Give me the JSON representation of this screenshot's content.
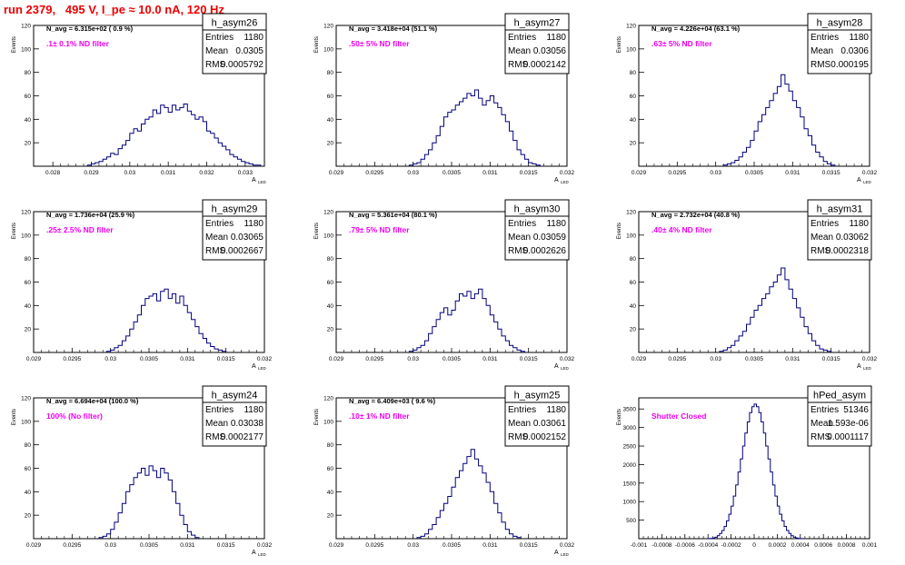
{
  "page": {
    "title": "run 2379,   495 V, I_pe ≈ 10.0 nA, 120 Hz"
  },
  "colors": {
    "hist": "#000080",
    "note": "#ee00ee",
    "title": "#ee0000",
    "frame": "#000000"
  },
  "chart_data": [
    {
      "type": "histogram",
      "name": "h_asym26",
      "navg": "N_avg = 6.315e+02 ( 0.9 %)",
      "note": ".1± 0.1% ND filter",
      "stats": {
        "entries": "1180",
        "mean": "0.0305",
        "rms": "0.0005792"
      },
      "xlim": [
        0.0275,
        0.0335
      ],
      "ylim": [
        0,
        120
      ],
      "xticks": [
        "0.028",
        "0.029",
        "0.03",
        "0.031",
        "0.032",
        "0.033"
      ],
      "yticks": [
        "20",
        "40",
        "60",
        "80",
        "100",
        "120"
      ],
      "xlabel": "A",
      "xsub": "LED",
      "ylabel": "Events",
      "bins": {
        "start": 0.0289,
        "width": 0.0001,
        "counts": [
          1,
          2,
          3,
          4,
          6,
          8,
          11,
          10,
          15,
          18,
          22,
          28,
          32,
          30,
          36,
          40,
          42,
          48,
          45,
          52,
          50,
          46,
          52,
          48,
          50,
          53,
          47,
          44,
          40,
          42,
          38,
          30,
          28,
          24,
          20,
          17,
          14,
          10,
          8,
          6,
          4,
          3,
          2,
          1,
          1
        ]
      }
    },
    {
      "type": "histogram",
      "name": "h_asym27",
      "navg": "N_avg = 3.418e+04 (51.1 %)",
      "note": ".50± 5% ND filter",
      "stats": {
        "entries": "1180",
        "mean": "0.03056",
        "rms": "0.0002142"
      },
      "xlim": [
        0.029,
        0.032
      ],
      "ylim": [
        0,
        120
      ],
      "xticks": [
        "0.029",
        "0.0295",
        "0.03",
        "0.0305",
        "0.031",
        "0.0315",
        "0.032"
      ],
      "yticks": [
        "20",
        "40",
        "60",
        "80",
        "100",
        "120"
      ],
      "xlabel": "A",
      "xsub": "LED",
      "ylabel": "Events",
      "bins": {
        "start": 0.02995,
        "width": 5e-05,
        "counts": [
          1,
          2,
          3,
          6,
          10,
          14,
          20,
          26,
          34,
          42,
          46,
          48,
          52,
          55,
          58,
          62,
          60,
          65,
          58,
          52,
          56,
          60,
          54,
          50,
          44,
          38,
          30,
          22,
          14,
          10,
          6,
          3,
          2,
          1
        ]
      }
    },
    {
      "type": "histogram",
      "name": "h_asym28",
      "navg": "N_avg = 4.226e+04 (63.1 %)",
      "note": ".63± 5% ND filter",
      "stats": {
        "entries": "1180",
        "mean": "0.0306",
        "rms": "0.000195"
      },
      "xlim": [
        0.029,
        0.032
      ],
      "ylim": [
        0,
        120
      ],
      "xticks": [
        "0.029",
        "0.0295",
        "0.03",
        "0.0305",
        "0.031",
        "0.0315",
        "0.032"
      ],
      "yticks": [
        "20",
        "40",
        "60",
        "80",
        "100",
        "120"
      ],
      "xlabel": "A",
      "xsub": "LED",
      "ylabel": "Events",
      "bins": {
        "start": 0.0301,
        "width": 5e-05,
        "counts": [
          1,
          2,
          3,
          5,
          8,
          12,
          16,
          22,
          30,
          38,
          44,
          50,
          56,
          62,
          68,
          78,
          70,
          64,
          56,
          50,
          42,
          32,
          26,
          18,
          12,
          8,
          4,
          2,
          1
        ]
      }
    },
    {
      "type": "histogram",
      "name": "h_asym29",
      "navg": "N_avg = 1.736e+04 (25.9 %)",
      "note": ".25± 2.5% ND filter",
      "stats": {
        "entries": "1180",
        "mean": "0.03065",
        "rms": "0.0002667"
      },
      "xlim": [
        0.029,
        0.032
      ],
      "ylim": [
        0,
        120
      ],
      "xticks": [
        "0.029",
        "0.0295",
        "0.03",
        "0.0305",
        "0.031",
        "0.0315",
        "0.032"
      ],
      "yticks": [
        "20",
        "40",
        "60",
        "80",
        "100",
        "120"
      ],
      "xlabel": "A",
      "xsub": "LED",
      "ylabel": "Events",
      "bins": {
        "start": 0.02995,
        "width": 5e-05,
        "counts": [
          1,
          2,
          4,
          6,
          10,
          14,
          20,
          26,
          32,
          40,
          46,
          48,
          50,
          44,
          52,
          54,
          46,
          50,
          42,
          48,
          40,
          34,
          28,
          22,
          16,
          12,
          8,
          5,
          3,
          2,
          1
        ]
      }
    },
    {
      "type": "histogram",
      "name": "h_asym30",
      "navg": "N_avg = 5.361e+04 (80.1 %)",
      "note": ".79± 5% ND filter",
      "stats": {
        "entries": "1180",
        "mean": "0.03059",
        "rms": "0.0002626"
      },
      "xlim": [
        0.029,
        0.032
      ],
      "ylim": [
        0,
        120
      ],
      "xticks": [
        "0.029",
        "0.0295",
        "0.03",
        "0.0305",
        "0.031",
        "0.0315",
        "0.032"
      ],
      "yticks": [
        "20",
        "40",
        "60",
        "80",
        "100",
        "120"
      ],
      "xlabel": "A",
      "xsub": "LED",
      "ylabel": "Events",
      "bins": {
        "start": 0.02995,
        "width": 5e-05,
        "counts": [
          1,
          2,
          4,
          6,
          10,
          16,
          22,
          28,
          34,
          38,
          32,
          36,
          44,
          50,
          48,
          52,
          46,
          50,
          54,
          46,
          40,
          32,
          26,
          20,
          14,
          10,
          6,
          4,
          2,
          1
        ]
      }
    },
    {
      "type": "histogram",
      "name": "h_asym31",
      "navg": "N_avg = 2.732e+04 (40.8 %)",
      "note": ".40± 4% ND filter",
      "stats": {
        "entries": "1180",
        "mean": "0.03062",
        "rms": "0.0002318"
      },
      "xlim": [
        0.029,
        0.032
      ],
      "ylim": [
        0,
        120
      ],
      "xticks": [
        "0.029",
        "0.0295",
        "0.03",
        "0.0305",
        "0.031",
        "0.0315",
        "0.032"
      ],
      "yticks": [
        "20",
        "40",
        "60",
        "80",
        "100",
        "120"
      ],
      "xlabel": "A",
      "xsub": "LED",
      "ylabel": "Events",
      "bins": {
        "start": 0.03005,
        "width": 5e-05,
        "counts": [
          1,
          2,
          4,
          6,
          10,
          14,
          18,
          24,
          30,
          36,
          40,
          46,
          50,
          56,
          60,
          66,
          72,
          62,
          54,
          46,
          38,
          30,
          22,
          16,
          10,
          6,
          3,
          2,
          1
        ]
      }
    },
    {
      "type": "histogram",
      "name": "h_asym24",
      "navg": "N_avg = 6.694e+04 (100.0 %)",
      "note": "100% (No filter)",
      "stats": {
        "entries": "1180",
        "mean": "0.03038",
        "rms": "0.0002177"
      },
      "xlim": [
        0.029,
        0.032
      ],
      "ylim": [
        0,
        120
      ],
      "xticks": [
        "0.029",
        "0.0295",
        "0.03",
        "0.0305",
        "0.031",
        "0.0315",
        "0.032"
      ],
      "yticks": [
        "20",
        "40",
        "60",
        "80",
        "100",
        "120"
      ],
      "xlabel": "A",
      "xsub": "LED",
      "ylabel": "Events",
      "bins": {
        "start": 0.02985,
        "width": 5e-05,
        "counts": [
          1,
          2,
          4,
          8,
          14,
          22,
          30,
          40,
          46,
          52,
          56,
          60,
          54,
          62,
          58,
          52,
          60,
          56,
          50,
          40,
          30,
          20,
          12,
          6,
          3,
          1
        ]
      }
    },
    {
      "type": "histogram",
      "name": "h_asym25",
      "navg": "N_avg = 6.409e+03 ( 9.6 %)",
      "note": ".10± 1% ND filter",
      "stats": {
        "entries": "1180",
        "mean": "0.03061",
        "rms": "0.0002152"
      },
      "xlim": [
        0.029,
        0.032
      ],
      "ylim": [
        0,
        120
      ],
      "xticks": [
        "0.029",
        "0.0295",
        "0.03",
        "0.0305",
        "0.031",
        "0.0315",
        "0.032"
      ],
      "yticks": [
        "20",
        "40",
        "60",
        "80",
        "100",
        "120"
      ],
      "xlabel": "A",
      "xsub": "LED",
      "ylabel": "Events",
      "bins": {
        "start": 0.03005,
        "width": 5e-05,
        "counts": [
          1,
          2,
          4,
          8,
          12,
          18,
          24,
          30,
          36,
          44,
          52,
          58,
          64,
          70,
          76,
          68,
          62,
          56,
          48,
          40,
          30,
          22,
          14,
          8,
          4,
          2,
          1
        ]
      }
    },
    {
      "type": "histogram",
      "name": "hPed_asym",
      "navg": "",
      "note": "Shutter Closed",
      "stats": {
        "entries": "51346",
        "mean": "1.593e-06",
        "rms": "0.0001117"
      },
      "xlim": [
        -0.001,
        0.001
      ],
      "ylim": [
        0,
        3800
      ],
      "xticks": [
        "-0.001",
        "-0.0008",
        "-0.0006",
        "-0.0004",
        "-0.0002",
        "0",
        "0.0002",
        "0.0004",
        "0.0006",
        "0.0008",
        "0.001"
      ],
      "yticks": [
        "500",
        "1000",
        "1500",
        "2000",
        "2500",
        "3000",
        "3500"
      ],
      "xlabel": "",
      "xsub": "",
      "ylabel": "Events",
      "bins": {
        "start": -0.0004,
        "width": 2e-05,
        "counts": [
          3,
          8,
          20,
          40,
          80,
          140,
          220,
          330,
          480,
          660,
          880,
          1150,
          1450,
          1800,
          2150,
          2500,
          2850,
          3150,
          3400,
          3560,
          3630,
          3560,
          3400,
          3150,
          2850,
          2500,
          2150,
          1800,
          1450,
          1150,
          880,
          660,
          480,
          330,
          220,
          140,
          80,
          40,
          20,
          8,
          3
        ]
      }
    }
  ]
}
